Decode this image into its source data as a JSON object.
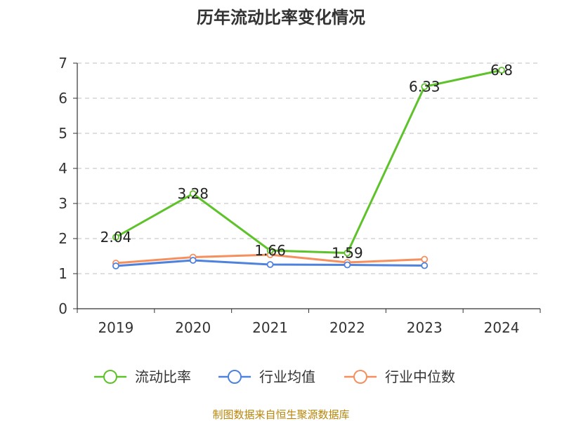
{
  "chart_data": {
    "type": "line",
    "title": "历年流动比率变化情况",
    "categories": [
      "2019",
      "2020",
      "2021",
      "2022",
      "2023",
      "2024"
    ],
    "ylim": [
      0,
      7
    ],
    "yticks": [
      0,
      1,
      2,
      3,
      4,
      5,
      6,
      7
    ],
    "grid": true,
    "legend_position": "bottom",
    "series": [
      {
        "name": "流动比率",
        "color": "#5ec22a",
        "values": [
          2.04,
          3.28,
          1.66,
          1.59,
          6.33,
          6.8
        ],
        "labels": [
          "2.04",
          "3.28",
          "1.66",
          "1.59",
          "6.33",
          "6.8"
        ],
        "show_labels": true
      },
      {
        "name": "行业均值",
        "color": "#4f82dd",
        "values": [
          1.22,
          1.38,
          1.26,
          1.25,
          1.23,
          null
        ],
        "show_labels": false
      },
      {
        "name": "行业中位数",
        "color": "#f5905e",
        "values": [
          1.3,
          1.47,
          1.54,
          1.32,
          1.41,
          null
        ],
        "show_labels": false
      }
    ]
  },
  "source_text": "制图数据来自恒生聚源数据库"
}
